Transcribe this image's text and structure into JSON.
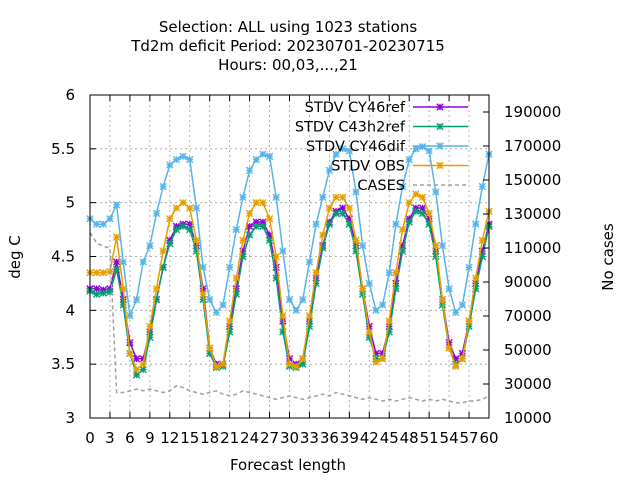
{
  "chart_data": {
    "type": "line",
    "title_lines": [
      "Selection: ALL using  1023 stations",
      "Td2m deficit   Period: 20230701-20230715",
      "Hours:  00,03,...,21"
    ],
    "xlabel": "Forecast length",
    "ylabel": "deg C",
    "y2label": "No cases",
    "xlim": [
      0,
      60
    ],
    "ylim": [
      3,
      6
    ],
    "y2lim": [
      10000,
      200000
    ],
    "x_ticks": [
      "0",
      "3",
      "6",
      "9",
      "12",
      "15",
      "18",
      "21",
      "24",
      "27",
      "30",
      "33",
      "36",
      "39",
      "42",
      "45",
      "48",
      "51",
      "54",
      "57",
      "60"
    ],
    "y_ticks": [
      "3",
      "3.5",
      "4",
      "4.5",
      "5",
      "5.5",
      "6"
    ],
    "y2_ticks": [
      "10000",
      "30000",
      "50000",
      "70000",
      "90000",
      "110000",
      "130000",
      "150000",
      "170000",
      "190000"
    ],
    "grid": true,
    "legend_position": "top-right",
    "x": [
      0,
      1,
      2,
      3,
      4,
      5,
      6,
      7,
      8,
      9,
      10,
      11,
      12,
      13,
      14,
      15,
      16,
      17,
      18,
      19,
      20,
      21,
      22,
      23,
      24,
      25,
      26,
      27,
      28,
      29,
      30,
      31,
      32,
      33,
      34,
      35,
      36,
      37,
      38,
      39,
      40,
      41,
      42,
      43,
      44,
      45,
      46,
      47,
      48,
      49,
      50,
      51,
      52,
      53,
      54,
      55,
      56,
      57,
      58,
      59,
      60
    ],
    "series": [
      {
        "name": "STDV CY46ref",
        "color": "#9400d3",
        "axis": "left",
        "marker": "x",
        "values": [
          4.2,
          4.2,
          4.19,
          4.2,
          4.45,
          4.1,
          3.7,
          3.55,
          3.55,
          3.8,
          4.1,
          4.4,
          4.65,
          4.78,
          4.8,
          4.8,
          4.6,
          4.2,
          3.65,
          3.5,
          3.5,
          3.85,
          4.2,
          4.55,
          4.78,
          4.82,
          4.82,
          4.7,
          4.4,
          3.9,
          3.55,
          3.5,
          3.55,
          3.9,
          4.3,
          4.6,
          4.82,
          4.92,
          4.95,
          4.85,
          4.6,
          4.2,
          3.85,
          3.6,
          3.6,
          3.85,
          4.25,
          4.6,
          4.85,
          4.95,
          4.95,
          4.85,
          4.55,
          4.1,
          3.7,
          3.55,
          3.6,
          3.9,
          4.25,
          4.55,
          4.8
        ]
      },
      {
        "name": "STDV C43h2ref",
        "color": "#009e73",
        "axis": "left",
        "marker": "x",
        "values": [
          4.18,
          4.15,
          4.16,
          4.17,
          4.38,
          4.05,
          3.6,
          3.4,
          3.45,
          3.75,
          4.1,
          4.4,
          4.62,
          4.75,
          4.78,
          4.75,
          4.55,
          4.1,
          3.6,
          3.47,
          3.48,
          3.8,
          4.15,
          4.5,
          4.7,
          4.78,
          4.78,
          4.65,
          4.3,
          3.8,
          3.48,
          3.47,
          3.5,
          3.85,
          4.25,
          4.58,
          4.8,
          4.9,
          4.9,
          4.8,
          4.55,
          4.15,
          3.75,
          3.55,
          3.55,
          3.8,
          4.2,
          4.55,
          4.82,
          4.92,
          4.9,
          4.8,
          4.5,
          4.05,
          3.65,
          3.5,
          3.55,
          3.85,
          4.2,
          4.5,
          4.78
        ]
      },
      {
        "name": "STDV CY46dif",
        "color": "#56b4e9",
        "axis": "left",
        "marker": "x",
        "values": [
          4.85,
          4.8,
          4.8,
          4.85,
          4.98,
          4.45,
          3.95,
          4.1,
          4.45,
          4.6,
          4.9,
          5.15,
          5.35,
          5.4,
          5.43,
          5.4,
          4.95,
          4.4,
          4.1,
          3.98,
          4.05,
          4.4,
          4.75,
          5.05,
          5.3,
          5.4,
          5.45,
          5.43,
          5.05,
          4.55,
          4.1,
          4.0,
          4.1,
          4.45,
          4.8,
          5.05,
          5.3,
          5.45,
          5.5,
          5.48,
          5.1,
          4.6,
          4.25,
          4.0,
          4.05,
          4.35,
          4.8,
          5.15,
          5.4,
          5.5,
          5.52,
          5.48,
          5.1,
          4.6,
          4.2,
          3.98,
          4.05,
          4.4,
          4.8,
          5.15,
          5.45
        ]
      },
      {
        "name": "STDV OBS",
        "color": "#e69f00",
        "axis": "left",
        "marker": "x",
        "values": [
          4.35,
          4.35,
          4.35,
          4.36,
          4.68,
          4.2,
          3.6,
          3.45,
          3.5,
          3.85,
          4.2,
          4.55,
          4.85,
          4.95,
          5.0,
          4.95,
          4.65,
          4.15,
          3.65,
          3.48,
          3.5,
          3.9,
          4.3,
          4.65,
          4.9,
          5.0,
          5.0,
          4.85,
          4.5,
          3.95,
          3.5,
          3.48,
          3.55,
          3.95,
          4.35,
          4.7,
          4.95,
          5.05,
          5.05,
          4.95,
          4.65,
          4.2,
          3.8,
          3.52,
          3.55,
          3.9,
          4.35,
          4.75,
          5.0,
          5.08,
          5.05,
          4.9,
          4.6,
          4.1,
          3.65,
          3.48,
          3.55,
          3.9,
          4.3,
          4.65,
          4.92
        ]
      },
      {
        "name": "CASES",
        "color": "#a0a0a0",
        "axis": "right",
        "dashed": true,
        "values": [
          119000,
          113000,
          111000,
          110000,
          25000,
          25000,
          26000,
          27000,
          26000,
          27000,
          26000,
          25000,
          26000,
          29000,
          28000,
          26000,
          25000,
          24000,
          25000,
          26000,
          24000,
          23000,
          24000,
          26000,
          25000,
          24000,
          23000,
          22000,
          21000,
          22000,
          23000,
          22000,
          21000,
          22000,
          23000,
          24000,
          23000,
          25000,
          24000,
          23000,
          22000,
          21000,
          22000,
          21000,
          20000,
          21000,
          20000,
          21000,
          22000,
          21000,
          20000,
          21000,
          20000,
          21000,
          20000,
          19000,
          19000,
          20000,
          20000,
          21000,
          23000
        ]
      }
    ]
  }
}
